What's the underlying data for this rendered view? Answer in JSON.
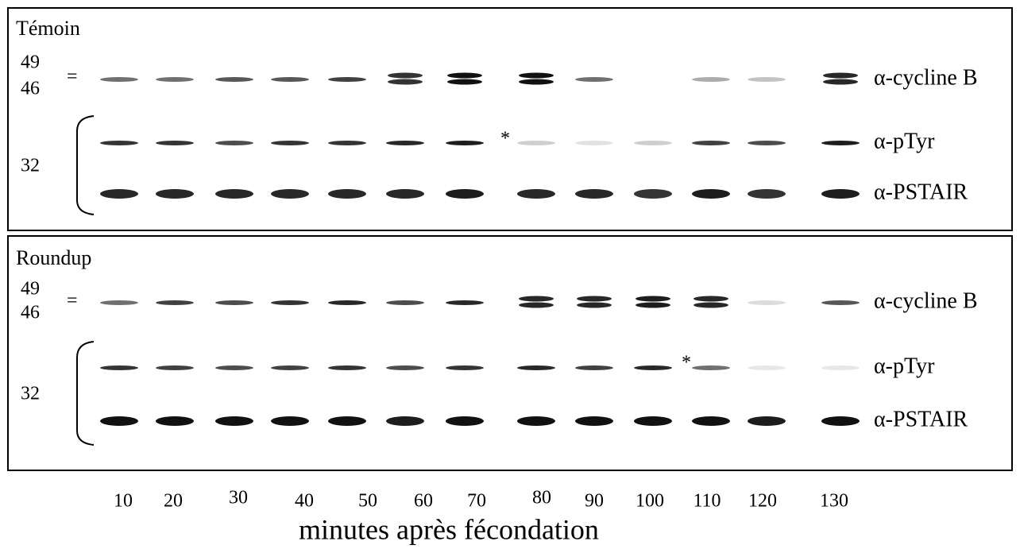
{
  "panels": [
    {
      "title": "Témoin",
      "markers": {
        "upper": "49",
        "pair": "=",
        "lower": "46",
        "bracket": "32"
      },
      "annotation": "*",
      "rows": [
        "α-cycline B",
        "α-pTyr",
        "α-PSTAIR"
      ]
    },
    {
      "title": "Roundup",
      "markers": {
        "upper": "49",
        "pair": "=",
        "lower": "46",
        "bracket": "32"
      },
      "annotation": "*",
      "rows": [
        "α-cycline B",
        "α-pTyr",
        "α-PSTAIR"
      ]
    }
  ],
  "x_axis": {
    "labels": [
      "10",
      "20",
      "30",
      "40",
      "50",
      "60",
      "70",
      "80",
      "90",
      "100",
      "110",
      "120",
      "130"
    ],
    "title": "minutes après fécondation"
  }
}
